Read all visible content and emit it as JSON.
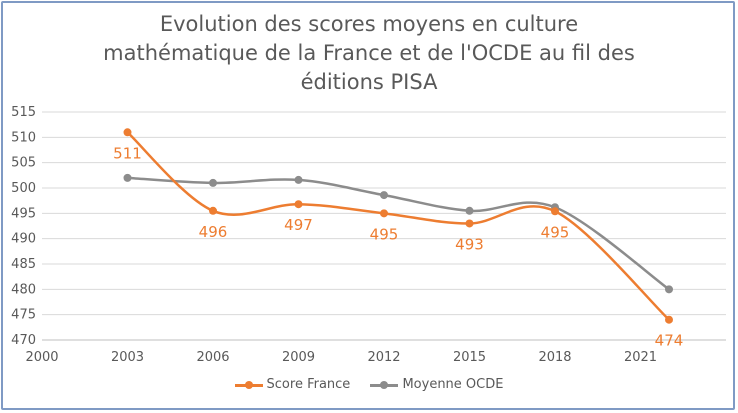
{
  "chart_data": {
    "type": "line",
    "title_lines": [
      "Evolution des scores moyens en culture",
      "mathématique de la France et de l'OCDE au fil des",
      "éditions PISA"
    ],
    "x_ticks": [
      "2000",
      "2003",
      "2006",
      "2009",
      "2012",
      "2015",
      "2018",
      "2021"
    ],
    "ylim": [
      470,
      515
    ],
    "y_ticks": [
      470,
      475,
      480,
      485,
      490,
      495,
      500,
      505,
      510,
      515
    ],
    "grid": true,
    "legend_position": "bottom",
    "series": [
      {
        "name": "Score France",
        "color": "#ed7d31",
        "smooth": true,
        "x": [
          2003,
          2006,
          2009,
          2012,
          2015,
          2018,
          2022
        ],
        "y": [
          511,
          495.5,
          496.8,
          495,
          493,
          495.4,
          474
        ],
        "labels": [
          "511",
          "496",
          "497",
          "495",
          "493",
          "495",
          "474"
        ]
      },
      {
        "name": "Moyenne OCDE",
        "color": "#8c8c8c",
        "smooth": true,
        "x": [
          2003,
          2006,
          2009,
          2012,
          2015,
          2018,
          2022
        ],
        "y": [
          502,
          501,
          501.6,
          498.6,
          495.5,
          496.2,
          480
        ],
        "labels": []
      }
    ]
  }
}
